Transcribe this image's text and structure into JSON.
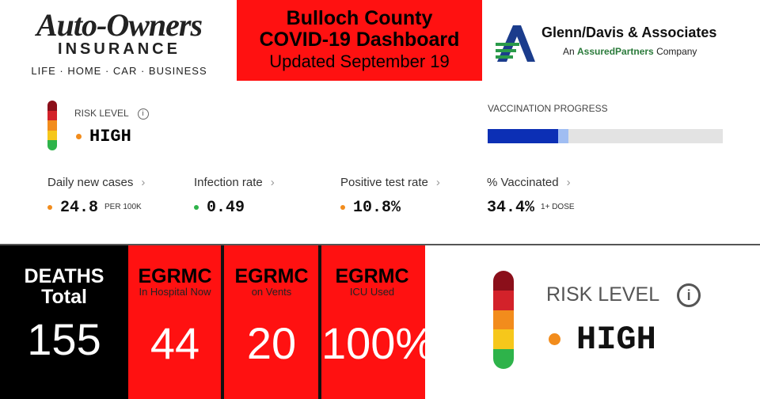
{
  "header": {
    "sponsor": {
      "name": "Auto-Owners",
      "sub": "INSURANCE",
      "tagline": "LIFE · HOME · CAR · BUSINESS"
    },
    "title": {
      "line1": "Bulloch County",
      "line2": "COVID-19 Dashboard",
      "updated": "Updated September 19"
    },
    "agency": {
      "name": "Glenn/Davis & Associates",
      "sub_pre": "An ",
      "sub_brand": "AssuredPartners",
      "sub_post": " Company"
    }
  },
  "risk": {
    "label": "RISK LEVEL",
    "level": "HIGH"
  },
  "vaccination_progress": {
    "label": "VACCINATION PROGRESS"
  },
  "metrics": [
    {
      "label": "Daily new cases",
      "value": "24.8",
      "unit": "PER 100K"
    },
    {
      "label": "Infection rate",
      "value": "0.49"
    },
    {
      "label": "Positive test rate",
      "value": "10.8%"
    },
    {
      "label": "% Vaccinated",
      "value": "34.4%",
      "unit": "1+ DOSE"
    }
  ],
  "tiles": [
    {
      "title": "DEATHS",
      "subtitle": "Total",
      "value": "155"
    },
    {
      "title": "EGRMC",
      "subtitle": "In Hospital Now",
      "value": "44"
    },
    {
      "title": "EGRMC",
      "subtitle": "on Vents",
      "value": "20"
    },
    {
      "title": "EGRMC",
      "subtitle": "ICU Used",
      "value": "100%"
    }
  ],
  "risk_large": {
    "label": "RISK LEVEL",
    "level": "HIGH"
  }
}
